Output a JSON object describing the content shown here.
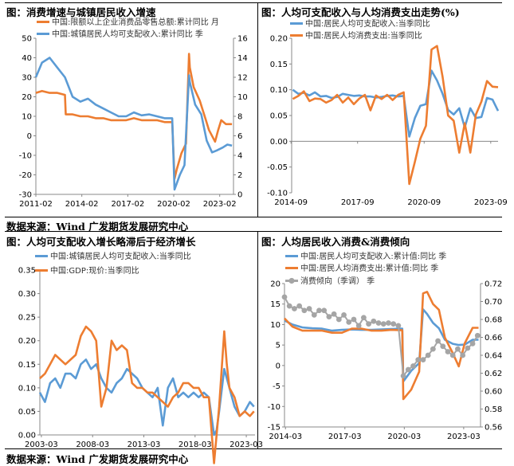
{
  "panels": [
    {
      "title": "图：消费增速与城镇居民收入增速"
    },
    {
      "title": "图：人均可支配收入与人均消费支出走势(%)"
    },
    {
      "title": "图：人均可支配收入增长略滞后于经济增长"
    },
    {
      "title": "图：人均居民收入消费&消费倾向"
    }
  ],
  "sources": [
    "数据来源：Wind 广发期货发展研究中心",
    "数据来源：Wind 广发期货发展研究中心"
  ],
  "colors": {
    "orange": "#ED7D31",
    "blue": "#5B9BD5",
    "gray": "#A5A5A5"
  },
  "chart_data": [
    {
      "type": "line",
      "x_ticks": [
        "2011-02",
        "2014-02",
        "2017-02",
        "2020-02",
        "2023-02"
      ],
      "x_range": [
        2011.1,
        2024.0
      ],
      "ylim_left": [
        -30,
        50
      ],
      "yticks_left": [
        -30,
        -20,
        -10,
        0,
        10,
        20,
        30,
        40,
        50
      ],
      "ylim_right": [
        0,
        16
      ],
      "yticks_right": [
        0,
        2,
        4,
        6,
        8,
        10,
        12,
        14,
        16
      ],
      "series": [
        {
          "name": "中国:限额以上企业消费品零售总额:累计同比 月",
          "axis": "left",
          "color": "#ED7D31",
          "x": [
            2011.1,
            2011.5,
            2012.0,
            2012.5,
            2013.0,
            2013.05,
            2013.5,
            2014.0,
            2014.5,
            2015.0,
            2015.5,
            2016.0,
            2016.5,
            2017.0,
            2017.5,
            2018.0,
            2018.5,
            2019.0,
            2019.5,
            2020.0,
            2020.15,
            2020.3,
            2020.6,
            2020.9,
            2021.1,
            2021.15,
            2021.4,
            2021.8,
            2022.2,
            2022.4,
            2022.8,
            2023.0,
            2023.2,
            2023.5,
            2023.9
          ],
          "y": [
            22,
            23,
            22,
            22,
            21,
            11,
            11,
            10,
            10,
            9,
            9,
            8,
            8,
            8,
            9,
            8,
            8,
            8,
            7,
            7,
            -22,
            -17,
            -9,
            -4,
            42,
            35,
            25,
            18,
            8,
            3,
            -3,
            3,
            8,
            6,
            6
          ]
        },
        {
          "name": "中国:城镇居民人均可支配收入:累计同比 季",
          "axis": "right",
          "color": "#5B9BD5",
          "x": [
            2011.1,
            2011.5,
            2012.0,
            2012.5,
            2013.0,
            2013.5,
            2014.0,
            2014.5,
            2015.0,
            2015.5,
            2016.0,
            2016.5,
            2017.0,
            2017.5,
            2018.0,
            2018.5,
            2019.0,
            2019.5,
            2020.0,
            2020.15,
            2020.5,
            2020.8,
            2021.1,
            2021.15,
            2021.5,
            2021.9,
            2022.25,
            2022.6,
            2022.9,
            2023.3,
            2023.6,
            2023.9
          ],
          "y": [
            12,
            13.5,
            14,
            13,
            12,
            10,
            9.5,
            9.8,
            9.2,
            8.8,
            8.4,
            8,
            8,
            8.4,
            8.1,
            8.2,
            8,
            7.8,
            7.8,
            0.5,
            2,
            3,
            12.2,
            11.5,
            9.2,
            8.2,
            5.5,
            4.3,
            4.5,
            4.8,
            5.1,
            5
          ]
        }
      ]
    },
    {
      "type": "line",
      "x_ticks": [
        "2014-09",
        "2017-09",
        "2020-09",
        "2023-09"
      ],
      "x_range": [
        2014.7,
        2024.0
      ],
      "ylim": [
        -0.1,
        0.2
      ],
      "yticks": [
        -0.1,
        -0.05,
        0.0,
        0.05,
        0.1,
        0.15,
        0.2
      ],
      "series": [
        {
          "name": "中国:居民人均可支配收入:当季同比",
          "color": "#5B9BD5",
          "x": [
            2014.75,
            2015.0,
            2015.25,
            2015.5,
            2015.75,
            2016.0,
            2016.25,
            2016.5,
            2016.75,
            2017.0,
            2017.25,
            2017.5,
            2017.75,
            2018.0,
            2018.25,
            2018.5,
            2018.75,
            2019.0,
            2019.25,
            2019.5,
            2019.75,
            2020.0,
            2020.25,
            2020.5,
            2020.75,
            2021.0,
            2021.25,
            2021.5,
            2021.75,
            2022.0,
            2022.25,
            2022.5,
            2022.75,
            2023.0,
            2023.25,
            2023.5,
            2023.75,
            2024.0
          ],
          "y": [
            0.1,
            0.092,
            0.094,
            0.089,
            0.095,
            0.087,
            0.088,
            0.084,
            0.086,
            0.092,
            0.09,
            0.088,
            0.089,
            0.087,
            0.087,
            0.085,
            0.086,
            0.088,
            0.089,
            0.087,
            0.088,
            0.009,
            0.045,
            0.069,
            0.072,
            0.137,
            0.118,
            0.092,
            0.061,
            0.052,
            0.064,
            0.027,
            0.064,
            0.045,
            0.047,
            0.084,
            0.081,
            0.059
          ]
        },
        {
          "name": "中国:居民人均消费支出:当季同比",
          "color": "#ED7D31",
          "x": [
            2014.75,
            2015.0,
            2015.25,
            2015.5,
            2015.75,
            2016.0,
            2016.25,
            2016.5,
            2016.75,
            2017.0,
            2017.25,
            2017.5,
            2017.75,
            2018.0,
            2018.25,
            2018.5,
            2018.75,
            2019.0,
            2019.25,
            2019.5,
            2019.75,
            2020.0,
            2020.25,
            2020.5,
            2020.75,
            2021.0,
            2021.25,
            2021.5,
            2021.75,
            2022.0,
            2022.25,
            2022.5,
            2022.75,
            2023.0,
            2023.25,
            2023.5,
            2023.75,
            2024.0
          ],
          "y": [
            0.082,
            0.088,
            0.097,
            0.078,
            0.083,
            0.082,
            0.075,
            0.08,
            0.09,
            0.075,
            0.085,
            0.072,
            0.083,
            0.09,
            0.06,
            0.089,
            0.082,
            0.09,
            0.08,
            0.09,
            0.095,
            -0.083,
            -0.04,
            0.005,
            0.03,
            0.178,
            0.185,
            0.125,
            0.05,
            0.04,
            -0.022,
            0.035,
            -0.022,
            0.052,
            0.077,
            0.117,
            0.106,
            0.105
          ]
        }
      ]
    },
    {
      "type": "line",
      "x_ticks": [
        "2003-03",
        "2008-03",
        "2013-03",
        "2018-03",
        "2023-03"
      ],
      "x_range": [
        2003.0,
        2024.0
      ],
      "ylim": [
        0.0,
        0.35
      ],
      "yticks": [
        0.0,
        0.05,
        0.1,
        0.15,
        0.2,
        0.25,
        0.3,
        0.35
      ],
      "series": [
        {
          "name": "中国:城镇居民人均可支配收入:当季同比",
          "color": "#5B9BD5",
          "x": [
            2003.0,
            2003.5,
            2004.0,
            2004.5,
            2005.0,
            2005.5,
            2006.0,
            2006.5,
            2007.0,
            2007.5,
            2008.0,
            2008.5,
            2009.0,
            2009.5,
            2010.0,
            2010.5,
            2011.0,
            2011.5,
            2012.0,
            2012.5,
            2013.0,
            2013.5,
            2014.0,
            2014.5,
            2015.0,
            2015.5,
            2016.0,
            2016.5,
            2017.0,
            2017.5,
            2018.0,
            2018.5,
            2019.0,
            2019.5,
            2020.0,
            2020.25,
            2020.5,
            2021.0,
            2021.5,
            2022.0,
            2022.5,
            2023.0,
            2023.5,
            2023.9
          ],
          "y": [
            0.09,
            0.07,
            0.11,
            0.12,
            0.1,
            0.13,
            0.13,
            0.12,
            0.15,
            0.16,
            0.14,
            0.15,
            0.12,
            0.1,
            0.09,
            0.11,
            0.12,
            0.14,
            0.13,
            0.12,
            0.1,
            0.09,
            0.08,
            0.1,
            0.02,
            0.1,
            0.12,
            0.08,
            0.09,
            0.08,
            0.09,
            0.08,
            0.09,
            0.08,
            0.0,
            0.01,
            0.05,
            0.14,
            0.1,
            0.06,
            0.04,
            0.05,
            0.07,
            0.06
          ]
        },
        {
          "name": "中国:GDP:现价:当季同比",
          "color": "#ED7D31",
          "x": [
            2003.0,
            2003.5,
            2004.0,
            2004.5,
            2005.0,
            2005.5,
            2006.0,
            2006.5,
            2007.0,
            2007.5,
            2008.0,
            2008.5,
            2009.0,
            2009.5,
            2010.0,
            2010.5,
            2011.0,
            2011.5,
            2012.0,
            2012.5,
            2013.0,
            2013.5,
            2014.0,
            2014.5,
            2015.0,
            2015.5,
            2016.0,
            2016.5,
            2017.0,
            2017.5,
            2018.0,
            2018.5,
            2019.0,
            2019.5,
            2020.0,
            2020.25,
            2020.5,
            2021.0,
            2021.25,
            2021.5,
            2022.0,
            2022.5,
            2023.0,
            2023.5,
            2023.9
          ],
          "y": [
            0.12,
            0.13,
            0.15,
            0.17,
            0.16,
            0.15,
            0.16,
            0.17,
            0.21,
            0.23,
            0.22,
            0.2,
            0.06,
            0.1,
            0.2,
            0.18,
            0.19,
            0.18,
            0.11,
            0.1,
            0.1,
            0.09,
            0.09,
            0.08,
            0.07,
            0.06,
            0.08,
            0.09,
            0.11,
            0.11,
            0.1,
            0.1,
            0.08,
            0.08,
            -0.06,
            0.0,
            0.06,
            0.22,
            0.15,
            0.1,
            0.08,
            0.04,
            0.05,
            0.04,
            0.05
          ]
        }
      ]
    },
    {
      "type": "line",
      "x_ticks": [
        "2014-03",
        "2017-03",
        "2020-03",
        "2023-03"
      ],
      "x_range": [
        2014.1,
        2024.0
      ],
      "ylim_left": [
        -15,
        20
      ],
      "yticks_left": [
        -15,
        -10,
        -5,
        0,
        5,
        10,
        15,
        20
      ],
      "ylim_right": [
        0.56,
        0.72
      ],
      "yticks_right": [
        0.56,
        0.58,
        0.6,
        0.62,
        0.64,
        0.66,
        0.68,
        0.7,
        0.72
      ],
      "series": [
        {
          "name": "中国:居民人均可支配收入:累计值:同比 季",
          "axis": "left",
          "color": "#5B9BD5",
          "x": [
            2014.1,
            2014.5,
            2015.0,
            2015.5,
            2016.0,
            2016.5,
            2017.0,
            2017.5,
            2018.0,
            2018.5,
            2019.0,
            2019.5,
            2020.05,
            2020.1,
            2020.5,
            2020.9,
            2021.1,
            2021.3,
            2021.6,
            2021.9,
            2022.2,
            2022.6,
            2022.9,
            2023.2,
            2023.6,
            2023.9
          ],
          "y": [
            11,
            10,
            9.3,
            9.1,
            9,
            8.5,
            8.7,
            8.8,
            8.7,
            8.7,
            8.8,
            8.9,
            9,
            -3.9,
            -1.3,
            0.6,
            13.7,
            12.6,
            10.4,
            9.1,
            6.3,
            5.3,
            5,
            5.1,
            6.3,
            6.3
          ]
        },
        {
          "name": "中国:居民人均消费支出:累计值:同比 季",
          "axis": "left",
          "color": "#ED7D31",
          "x": [
            2014.1,
            2014.5,
            2015.0,
            2015.5,
            2016.0,
            2016.5,
            2017.0,
            2017.5,
            2018.0,
            2018.5,
            2019.0,
            2019.5,
            2020.05,
            2020.1,
            2020.5,
            2020.9,
            2021.1,
            2021.3,
            2021.6,
            2021.9,
            2022.2,
            2022.6,
            2022.9,
            2023.2,
            2023.6,
            2023.9
          ],
          "y": [
            11.5,
            9.5,
            8.5,
            8.5,
            8.5,
            8,
            8,
            9,
            9,
            8.5,
            8.5,
            8.7,
            8.6,
            -8.2,
            -5.9,
            -1.5,
            17.6,
            18,
            15,
            13.6,
            6.8,
            3,
            -0.2,
            5.4,
            9.2,
            9.2
          ]
        },
        {
          "name": "消费倾向（季调） 季",
          "axis": "right",
          "color": "#A5A5A5",
          "markers": true,
          "x": [
            2014.1,
            2014.35,
            2014.6,
            2014.85,
            2015.1,
            2015.35,
            2015.6,
            2015.85,
            2016.1,
            2016.35,
            2016.6,
            2016.85,
            2017.1,
            2017.35,
            2017.6,
            2017.85,
            2018.1,
            2018.35,
            2018.6,
            2018.85,
            2019.1,
            2019.35,
            2019.6,
            2019.85,
            2020.1,
            2020.35,
            2020.6,
            2020.85,
            2021.1,
            2021.35,
            2021.6,
            2021.85,
            2022.1,
            2022.35,
            2022.6,
            2022.85,
            2023.1,
            2023.35,
            2023.6,
            2023.85
          ],
          "y": [
            0.705,
            0.695,
            0.692,
            0.695,
            0.69,
            0.692,
            0.685,
            0.69,
            0.69,
            0.683,
            0.686,
            0.68,
            0.685,
            0.677,
            0.68,
            0.673,
            0.682,
            0.675,
            0.678,
            0.676,
            0.675,
            0.676,
            0.675,
            0.673,
            0.617,
            0.624,
            0.628,
            0.635,
            0.635,
            0.64,
            0.647,
            0.656,
            0.65,
            0.644,
            0.64,
            0.647,
            0.64,
            0.648,
            0.653,
            0.662
          ]
        }
      ]
    }
  ]
}
